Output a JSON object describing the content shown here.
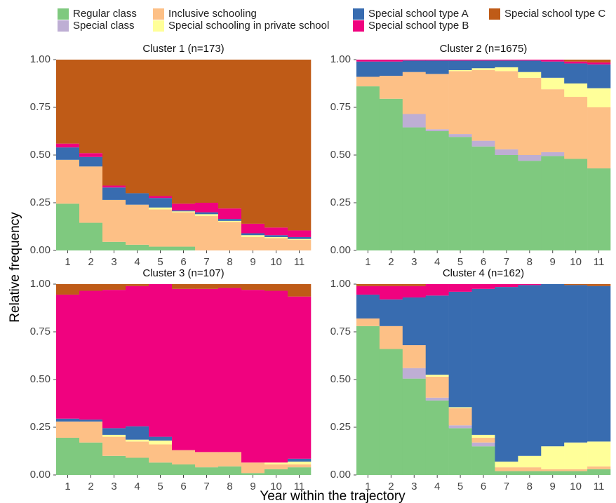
{
  "chart_data": [
    {
      "type": "stacked_bar",
      "title": "Cluster 1 (n=173)",
      "y_label": "Relative frequency",
      "x_label": "Year within the trajectory",
      "categories": [
        1,
        2,
        3,
        4,
        5,
        6,
        7,
        8,
        9,
        10,
        11
      ],
      "ylim": [
        0,
        1
      ],
      "yticks": [
        {
          "value": 0,
          "label": "0.00"
        },
        {
          "value": 0.25,
          "label": "0.25"
        },
        {
          "value": 0.5,
          "label": "0.50"
        },
        {
          "value": 0.75,
          "label": "0.75"
        },
        {
          "value": 1,
          "label": "1.00"
        }
      ],
      "series": [
        {
          "name": "Regular class",
          "color": "#7fc97f",
          "values": [
            0.245,
            0.145,
            0.045,
            0.03,
            0.02,
            0.02,
            0,
            0,
            0,
            0,
            0
          ]
        },
        {
          "name": "Special class",
          "color": "#beaed4",
          "values": [
            0,
            0,
            0,
            0,
            0,
            0,
            0,
            0,
            0,
            0,
            0
          ]
        },
        {
          "name": "Inclusive schooling",
          "color": "#fdc086",
          "values": [
            0.23,
            0.295,
            0.22,
            0.21,
            0.195,
            0.18,
            0.18,
            0.15,
            0.07,
            0.065,
            0.055
          ]
        },
        {
          "name": "Special schooling in private school",
          "color": "#ffff99",
          "values": [
            0,
            0,
            0,
            0,
            0.01,
            0.005,
            0.01,
            0.005,
            0.01,
            0.005,
            0.005
          ]
        },
        {
          "name": "Special school type A",
          "color": "#386cb0",
          "values": [
            0.065,
            0.05,
            0.065,
            0.06,
            0.05,
            0.005,
            0.01,
            0.01,
            0.01,
            0.01,
            0.01
          ]
        },
        {
          "name": "Special school type B",
          "color": "#f0027f",
          "values": [
            0.02,
            0.02,
            0.01,
            0,
            0.01,
            0.035,
            0.05,
            0.055,
            0.05,
            0.04,
            0.035
          ]
        },
        {
          "name": "Special school type C",
          "color": "#bf5b17",
          "values": [
            0.44,
            0.49,
            0.66,
            0.7,
            0.715,
            0.755,
            0.75,
            0.78,
            0.86,
            0.88,
            0.895
          ]
        }
      ]
    },
    {
      "type": "stacked_bar",
      "title": "Cluster 2 (n=1675)",
      "categories": [
        1,
        2,
        3,
        4,
        5,
        6,
        7,
        8,
        9,
        10,
        11
      ],
      "ylim": [
        0,
        1
      ],
      "yticks": [
        {
          "value": 0,
          "label": "0.00"
        },
        {
          "value": 0.25,
          "label": "0.25"
        },
        {
          "value": 0.5,
          "label": "0.50"
        },
        {
          "value": 0.75,
          "label": "0.75"
        },
        {
          "value": 1,
          "label": "1.00"
        }
      ],
      "series": [
        {
          "name": "Regular class",
          "color": "#7fc97f",
          "values": [
            0.86,
            0.795,
            0.645,
            0.625,
            0.595,
            0.545,
            0.5,
            0.47,
            0.495,
            0.48,
            0.43
          ]
        },
        {
          "name": "Special class",
          "color": "#beaed4",
          "values": [
            0,
            0,
            0.07,
            0.01,
            0.015,
            0.03,
            0.03,
            0.03,
            0.02,
            0,
            0
          ]
        },
        {
          "name": "Inclusive schooling",
          "color": "#fdc086",
          "values": [
            0.05,
            0.12,
            0.22,
            0.29,
            0.33,
            0.37,
            0.41,
            0.405,
            0.33,
            0.325,
            0.32
          ]
        },
        {
          "name": "Special schooling in private school",
          "color": "#ffff99",
          "values": [
            0,
            0,
            0,
            0,
            0.005,
            0.01,
            0.02,
            0.03,
            0.06,
            0.07,
            0.1
          ]
        },
        {
          "name": "Special school type A",
          "color": "#386cb0",
          "values": [
            0.08,
            0.075,
            0.06,
            0.07,
            0.05,
            0.04,
            0.035,
            0.06,
            0.085,
            0.105,
            0.125
          ]
        },
        {
          "name": "Special school type B",
          "color": "#f0027f",
          "values": [
            0.01,
            0.01,
            0.005,
            0.005,
            0.005,
            0.005,
            0.005,
            0.005,
            0.01,
            0.01,
            0.01
          ]
        },
        {
          "name": "Special school type C",
          "color": "#bf5b17",
          "values": [
            0,
            0,
            0,
            0,
            0,
            0,
            0,
            0,
            0,
            0.01,
            0.015
          ]
        }
      ]
    },
    {
      "type": "stacked_bar",
      "title": "Cluster 3 (n=107)",
      "categories": [
        1,
        2,
        3,
        4,
        5,
        6,
        7,
        8,
        9,
        10,
        11
      ],
      "ylim": [
        0,
        1
      ],
      "yticks": [
        {
          "value": 0,
          "label": "0.00"
        },
        {
          "value": 0.25,
          "label": "0.25"
        },
        {
          "value": 0.5,
          "label": "0.50"
        },
        {
          "value": 0.75,
          "label": "0.75"
        },
        {
          "value": 1,
          "label": "1.00"
        }
      ],
      "series": [
        {
          "name": "Regular class",
          "color": "#7fc97f",
          "values": [
            0.195,
            0.17,
            0.1,
            0.09,
            0.065,
            0.055,
            0.04,
            0.045,
            0.01,
            0.03,
            0.04
          ]
        },
        {
          "name": "Special class",
          "color": "#beaed4",
          "values": [
            0,
            0,
            0,
            0,
            0,
            0,
            0,
            0,
            0,
            0,
            0
          ]
        },
        {
          "name": "Inclusive schooling",
          "color": "#fdc086",
          "values": [
            0.085,
            0.11,
            0.1,
            0.085,
            0.095,
            0.075,
            0.08,
            0.075,
            0.055,
            0.025,
            0.015
          ]
        },
        {
          "name": "Special schooling in private school",
          "color": "#ffff99",
          "values": [
            0,
            0,
            0.01,
            0.01,
            0.02,
            0,
            0,
            0,
            0,
            0.01,
            0.015
          ]
        },
        {
          "name": "Special school type A",
          "color": "#386cb0",
          "values": [
            0.015,
            0.01,
            0.035,
            0.07,
            0.02,
            0,
            0,
            0,
            0,
            0,
            0.015
          ]
        },
        {
          "name": "Special school type B",
          "color": "#f0027f",
          "values": [
            0.65,
            0.675,
            0.725,
            0.735,
            0.8,
            0.845,
            0.855,
            0.86,
            0.905,
            0.9,
            0.85
          ]
        },
        {
          "name": "Special school type C",
          "color": "#bf5b17",
          "values": [
            0.055,
            0.035,
            0.03,
            0.01,
            0,
            0.025,
            0.025,
            0.02,
            0.03,
            0.035,
            0.065
          ]
        }
      ]
    },
    {
      "type": "stacked_bar",
      "title": "Cluster 4 (n=162)",
      "categories": [
        1,
        2,
        3,
        4,
        5,
        6,
        7,
        8,
        9,
        10,
        11
      ],
      "ylim": [
        0,
        1
      ],
      "yticks": [
        {
          "value": 0,
          "label": "0.00"
        },
        {
          "value": 0.25,
          "label": "0.25"
        },
        {
          "value": 0.5,
          "label": "0.50"
        },
        {
          "value": 0.75,
          "label": "0.75"
        },
        {
          "value": 1,
          "label": "1.00"
        }
      ],
      "series": [
        {
          "name": "Regular class",
          "color": "#7fc97f",
          "values": [
            0.78,
            0.66,
            0.505,
            0.39,
            0.245,
            0.15,
            0.02,
            0.02,
            0.02,
            0.02,
            0.03
          ]
        },
        {
          "name": "Special class",
          "color": "#beaed4",
          "values": [
            0,
            0,
            0.055,
            0.015,
            0.015,
            0.02,
            0,
            0,
            0,
            0,
            0
          ]
        },
        {
          "name": "Inclusive schooling",
          "color": "#fdc086",
          "values": [
            0.04,
            0.12,
            0.12,
            0.11,
            0.09,
            0.025,
            0.02,
            0.02,
            0.01,
            0.01,
            0.015
          ]
        },
        {
          "name": "Special schooling in private school",
          "color": "#ffff99",
          "values": [
            0,
            0,
            0,
            0.01,
            0.005,
            0.015,
            0.03,
            0.06,
            0.12,
            0.14,
            0.13
          ]
        },
        {
          "name": "Special school type A",
          "color": "#386cb0",
          "values": [
            0.125,
            0.14,
            0.25,
            0.415,
            0.605,
            0.765,
            0.915,
            0.895,
            0.85,
            0.825,
            0.815
          ]
        },
        {
          "name": "Special school type B",
          "color": "#f0027f",
          "values": [
            0.045,
            0.07,
            0.06,
            0.06,
            0.04,
            0.025,
            0.015,
            0.005,
            0,
            0,
            0
          ]
        },
        {
          "name": "Special school type C",
          "color": "#bf5b17",
          "values": [
            0.01,
            0.01,
            0.01,
            0,
            0,
            0,
            0,
            0,
            0,
            0.005,
            0.01
          ]
        }
      ]
    }
  ]
}
